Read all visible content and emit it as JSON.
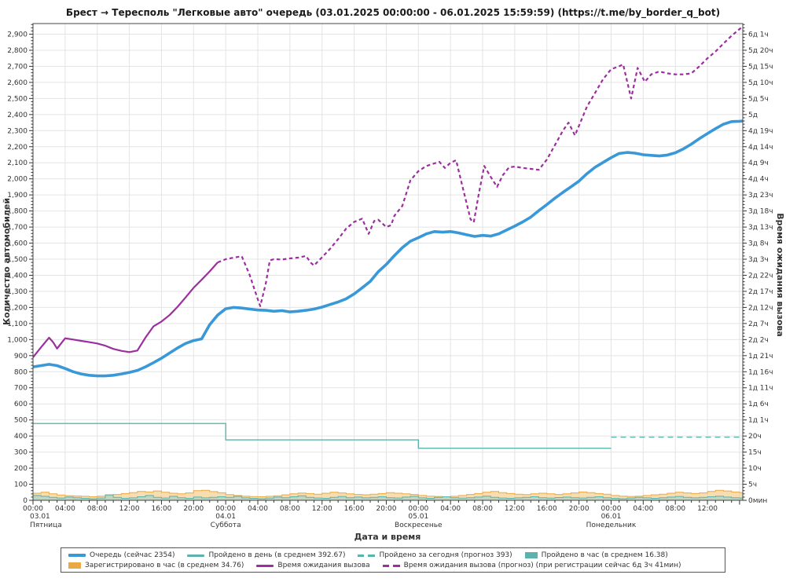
{
  "page": {
    "title": "Брест  →  Тересполь \"Легковые авто\" очередь (03.01.2025 00:00:00 - 06.01.2025 15:59:59) (https://t.me/by_border_q_bot)"
  },
  "colors": {
    "queue": "#3898d8",
    "teal": "#5cb3ac",
    "teal_fill": "#9ed0cb",
    "orange": "#eaa943",
    "orange_fill": "#f5cf8f",
    "purple": "#9b2f9e",
    "grid": "#e4e4e4",
    "axis": "#333333"
  },
  "legend": {
    "items": [
      {
        "label": "Очередь (сейчас 2354)",
        "swatch": "queue-line"
      },
      {
        "label": "Пройдено в день (в среднем 392.67)",
        "swatch": "teal-line"
      },
      {
        "label": "Пройдено за сегодня (прогноз 393)",
        "swatch": "teal-dash"
      },
      {
        "label": "Пройдено в час (в среднем 16.38)",
        "swatch": "teal-box"
      },
      {
        "label": "Зарегистрировано в час (в среднем 34.76)",
        "swatch": "orange-box"
      },
      {
        "label": "Время ожидания вызова",
        "swatch": "purple-line"
      },
      {
        "label": "Время ожидания вызова (прогноз) (при регистрации сейчас 6д 3ч 41мин)",
        "swatch": "purple-dash"
      }
    ]
  },
  "chart_data": {
    "type": "line",
    "title": "Брест  →  Тересполь \"Легковые авто\" очередь (03.01.2025 00:00:00 - 06.01.2025 15:59:59) (https://t.me/by_border_q_bot)",
    "xlabel": "Дата и время",
    "ylabel_left": "Количество автомобилей",
    "ylabel_right": "Время ожидания вызова",
    "x": {
      "min": 0,
      "max": 88.4,
      "major_step": 4,
      "minor_step": 1
    },
    "y_left": {
      "min": 0,
      "max": 2966,
      "label_max": 2900,
      "major_step": 100,
      "minor_step": 20
    },
    "y_right_tick_labels": [
      "0мин",
      "5ч",
      "10ч",
      "15ч",
      "20ч",
      "1д 1ч",
      "1д 6ч",
      "1д 11ч",
      "1д 16ч",
      "1д 21ч",
      "2д 2ч",
      "2д 7ч",
      "2д 12ч",
      "2д 17ч",
      "2д 22ч",
      "3д 3ч",
      "3д 8ч",
      "3д 13ч",
      "3д 18ч",
      "3д 23ч",
      "4д 4ч",
      "4д 9ч",
      "4д 14ч",
      "4д 19ч",
      "5д",
      "5д 5ч",
      "5д 10ч",
      "5д 15ч",
      "5д 20ч",
      "6д 1ч"
    ],
    "x_ticks": [
      {
        "t": 0,
        "label": "00:00",
        "date": "03.01",
        "weekday": "Пятница"
      },
      {
        "t": 4,
        "label": "04:00"
      },
      {
        "t": 8,
        "label": "08:00"
      },
      {
        "t": 12,
        "label": "12:00"
      },
      {
        "t": 16,
        "label": "16:00"
      },
      {
        "t": 20,
        "label": "20:00"
      },
      {
        "t": 24,
        "label": "00:00",
        "date": "04.01",
        "weekday": "Суббота"
      },
      {
        "t": 28,
        "label": "04:00"
      },
      {
        "t": 32,
        "label": "08:00"
      },
      {
        "t": 36,
        "label": "12:00"
      },
      {
        "t": 40,
        "label": "16:00"
      },
      {
        "t": 44,
        "label": "20:00"
      },
      {
        "t": 48,
        "label": "00:00",
        "date": "05.01",
        "weekday": "Воскресенье"
      },
      {
        "t": 52,
        "label": "04:00"
      },
      {
        "t": 56,
        "label": "08:00"
      },
      {
        "t": 60,
        "label": "12:00"
      },
      {
        "t": 64,
        "label": "16:00"
      },
      {
        "t": 68,
        "label": "20:00"
      },
      {
        "t": 72,
        "label": "00:00",
        "date": "06.01",
        "weekday": "Понедельник"
      },
      {
        "t": 76,
        "label": "04:00"
      },
      {
        "t": 80,
        "label": "08:00"
      },
      {
        "t": 84,
        "label": "12:00"
      }
    ],
    "series": {
      "queue": {
        "name": "Очередь (сейчас 2354)",
        "current": 2354,
        "points": [
          [
            0,
            830
          ],
          [
            1,
            838
          ],
          [
            2,
            846
          ],
          [
            3,
            838
          ],
          [
            4,
            820
          ],
          [
            5,
            800
          ],
          [
            6,
            786
          ],
          [
            7,
            778
          ],
          [
            8,
            774
          ],
          [
            9,
            774
          ],
          [
            10,
            778
          ],
          [
            11,
            786
          ],
          [
            12,
            796
          ],
          [
            13,
            808
          ],
          [
            14,
            830
          ],
          [
            15,
            856
          ],
          [
            16,
            884
          ],
          [
            17,
            916
          ],
          [
            18,
            948
          ],
          [
            19,
            976
          ],
          [
            20,
            994
          ],
          [
            21,
            1004
          ],
          [
            22,
            1092
          ],
          [
            23,
            1152
          ],
          [
            24,
            1192
          ],
          [
            25,
            1200
          ],
          [
            26,
            1196
          ],
          [
            27,
            1190
          ],
          [
            28,
            1184
          ],
          [
            29,
            1182
          ],
          [
            30,
            1176
          ],
          [
            31,
            1180
          ],
          [
            32,
            1172
          ],
          [
            33,
            1176
          ],
          [
            34,
            1182
          ],
          [
            35,
            1190
          ],
          [
            36,
            1202
          ],
          [
            37,
            1218
          ],
          [
            38,
            1234
          ],
          [
            39,
            1254
          ],
          [
            40,
            1284
          ],
          [
            41,
            1322
          ],
          [
            42,
            1362
          ],
          [
            43,
            1422
          ],
          [
            44,
            1468
          ],
          [
            45,
            1522
          ],
          [
            46,
            1572
          ],
          [
            47,
            1612
          ],
          [
            48,
            1634
          ],
          [
            49,
            1658
          ],
          [
            50,
            1672
          ],
          [
            51,
            1668
          ],
          [
            52,
            1672
          ],
          [
            53,
            1664
          ],
          [
            54,
            1652
          ],
          [
            55,
            1642
          ],
          [
            56,
            1648
          ],
          [
            57,
            1644
          ],
          [
            58,
            1658
          ],
          [
            59,
            1682
          ],
          [
            60,
            1706
          ],
          [
            61,
            1732
          ],
          [
            62,
            1762
          ],
          [
            63,
            1802
          ],
          [
            64,
            1840
          ],
          [
            65,
            1880
          ],
          [
            66,
            1916
          ],
          [
            67,
            1950
          ],
          [
            68,
            1986
          ],
          [
            69,
            2032
          ],
          [
            70,
            2072
          ],
          [
            71,
            2102
          ],
          [
            72,
            2132
          ],
          [
            73,
            2158
          ],
          [
            74,
            2164
          ],
          [
            75,
            2160
          ],
          [
            76,
            2150
          ],
          [
            77,
            2146
          ],
          [
            78,
            2142
          ],
          [
            79,
            2148
          ],
          [
            80,
            2162
          ],
          [
            81,
            2186
          ],
          [
            82,
            2216
          ],
          [
            83,
            2250
          ],
          [
            84,
            2282
          ],
          [
            85,
            2312
          ],
          [
            86,
            2340
          ],
          [
            87,
            2356
          ],
          [
            88,
            2358
          ],
          [
            88.4,
            2360
          ]
        ]
      },
      "wait_actual": {
        "name": "Время ожидания вызова",
        "points": [
          [
            0,
            890
          ],
          [
            1,
            952
          ],
          [
            2,
            1012
          ],
          [
            2.5,
            984
          ],
          [
            3,
            944
          ],
          [
            4,
            1008
          ],
          [
            5,
            1000
          ],
          [
            6,
            992
          ],
          [
            7,
            984
          ],
          [
            8,
            976
          ],
          [
            9,
            962
          ],
          [
            10,
            942
          ],
          [
            11,
            930
          ],
          [
            12,
            922
          ],
          [
            13,
            932
          ],
          [
            14,
            1012
          ],
          [
            15,
            1082
          ],
          [
            16,
            1112
          ],
          [
            17,
            1152
          ],
          [
            18,
            1204
          ],
          [
            19,
            1262
          ],
          [
            20,
            1322
          ],
          [
            21,
            1372
          ],
          [
            22,
            1424
          ],
          [
            23,
            1480
          ]
        ]
      },
      "wait_forecast": {
        "name": "Время ожидания вызова (прогноз)",
        "current_label": "6д 3ч 41мин",
        "points": [
          [
            23,
            1480
          ],
          [
            24,
            1500
          ],
          [
            25,
            1510
          ],
          [
            26,
            1518
          ],
          [
            27,
            1400
          ],
          [
            28,
            1250
          ],
          [
            28.3,
            1208
          ],
          [
            29,
            1350
          ],
          [
            29.5,
            1493
          ],
          [
            30,
            1500
          ],
          [
            31,
            1498
          ],
          [
            32,
            1505
          ],
          [
            33,
            1510
          ],
          [
            34,
            1520
          ],
          [
            34.6,
            1478
          ],
          [
            35,
            1461
          ],
          [
            36,
            1512
          ],
          [
            37,
            1565
          ],
          [
            38,
            1625
          ],
          [
            39,
            1690
          ],
          [
            40,
            1732
          ],
          [
            41,
            1752
          ],
          [
            41.8,
            1658
          ],
          [
            42.5,
            1738
          ],
          [
            43,
            1746
          ],
          [
            44,
            1700
          ],
          [
            44.6,
            1712
          ],
          [
            45,
            1770
          ],
          [
            46,
            1832
          ],
          [
            47,
            1990
          ],
          [
            48,
            2048
          ],
          [
            49,
            2080
          ],
          [
            50,
            2096
          ],
          [
            50.6,
            2106
          ],
          [
            51.3,
            2068
          ],
          [
            52,
            2100
          ],
          [
            52.7,
            2116
          ],
          [
            53.5,
            1950
          ],
          [
            54.5,
            1748
          ],
          [
            54.9,
            1730
          ],
          [
            55.5,
            1900
          ],
          [
            56.2,
            2080
          ],
          [
            57,
            2012
          ],
          [
            57.8,
            1950
          ],
          [
            58.5,
            2022
          ],
          [
            59.3,
            2072
          ],
          [
            60,
            2076
          ],
          [
            61,
            2068
          ],
          [
            62,
            2062
          ],
          [
            63,
            2056
          ],
          [
            64,
            2120
          ],
          [
            65,
            2210
          ],
          [
            66,
            2300
          ],
          [
            66.7,
            2350
          ],
          [
            67.5,
            2270
          ],
          [
            68,
            2330
          ],
          [
            69,
            2450
          ],
          [
            70,
            2534
          ],
          [
            71,
            2620
          ],
          [
            72,
            2682
          ],
          [
            73,
            2700
          ],
          [
            73.5,
            2712
          ],
          [
            74.5,
            2500
          ],
          [
            75.3,
            2690
          ],
          [
            76.2,
            2604
          ],
          [
            77,
            2650
          ],
          [
            78,
            2668
          ],
          [
            79,
            2656
          ],
          [
            80,
            2650
          ],
          [
            81,
            2650
          ],
          [
            82,
            2656
          ],
          [
            83,
            2700
          ],
          [
            84,
            2750
          ],
          [
            85,
            2792
          ],
          [
            86,
            2842
          ],
          [
            87,
            2890
          ],
          [
            88,
            2932
          ],
          [
            88.4,
            2946
          ]
        ]
      },
      "passed_per_day": {
        "name": "Пройдено в день (в среднем 392.67)",
        "average": 392.67,
        "points": [
          [
            0,
            478
          ],
          [
            24,
            478
          ],
          [
            24,
            376
          ],
          [
            48,
            376
          ],
          [
            48,
            324
          ],
          [
            72,
            324
          ]
        ]
      },
      "passed_today_forecast": {
        "name": "Пройдено за сегодня (прогноз 393)",
        "forecast": 393,
        "points": [
          [
            72,
            393
          ],
          [
            88.4,
            393
          ]
        ]
      },
      "passed_per_hour": {
        "name": "Пройдено в час (в среднем 16.38)",
        "average": 16.38,
        "values": [
          30,
          25,
          18,
          14,
          20,
          16,
          12,
          10,
          14,
          34,
          18,
          12,
          15,
          22,
          30,
          18,
          14,
          25,
          16,
          12,
          20,
          15,
          18,
          22,
          18,
          25,
          15,
          12,
          10,
          14,
          20,
          16,
          22,
          28,
          18,
          14,
          12,
          18,
          24,
          16,
          20,
          15,
          18,
          22,
          16,
          14,
          20,
          25,
          15,
          12,
          18,
          22,
          16,
          13,
          16,
          20,
          26,
          18,
          14,
          12,
          15,
          18,
          22,
          16,
          13,
          17,
          20,
          16,
          14,
          18,
          22,
          16,
          12,
          10,
          14,
          18,
          15,
          12,
          16,
          20,
          24,
          18,
          15,
          18,
          22,
          26,
          20,
          16,
          14
        ]
      },
      "registered_per_hour": {
        "name": "Зарегистрировано в час (в среднем 34.76)",
        "average": 34.76,
        "values": [
          44,
          50,
          40,
          33,
          29,
          27,
          25,
          22,
          26,
          31,
          36,
          42,
          48,
          55,
          52,
          58,
          50,
          44,
          40,
          46,
          60,
          62,
          54,
          47,
          35,
          30,
          26,
          23,
          22,
          25,
          28,
          34,
          40,
          45,
          42,
          38,
          44,
          50,
          46,
          40,
          36,
          34,
          38,
          42,
          48,
          44,
          40,
          36,
          30,
          26,
          24,
          22,
          25,
          30,
          36,
          42,
          50,
          55,
          48,
          42,
          38,
          35,
          40,
          44,
          40,
          36,
          40,
          46,
          52,
          48,
          42,
          38,
          30,
          26,
          24,
          26,
          30,
          34,
          38,
          44,
          50,
          46,
          42,
          46,
          55,
          62,
          58,
          52,
          48
        ]
      }
    }
  }
}
